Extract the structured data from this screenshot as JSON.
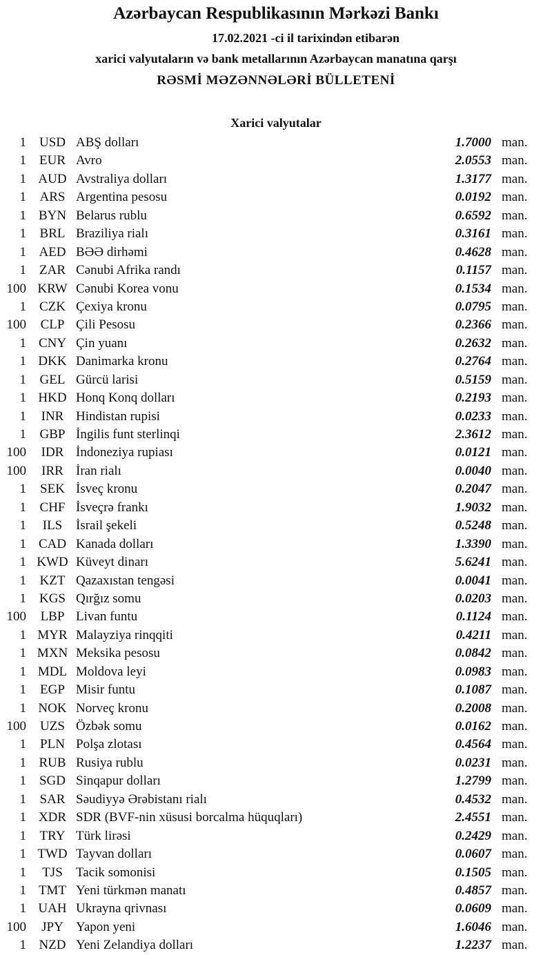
{
  "header": {
    "title": "Azərbaycan Respublikasının Mərkəzi Bankı",
    "date_line": "17.02.2021 -ci il tarixindən etibarən",
    "subtitle": "xarici valyutaların və bank metallarının Azərbaycan manatına qarşı",
    "bulletin": "RƏSMİ MƏZƏNNƏLƏRİ BÜLLETENİ"
  },
  "section_title": "Xarici valyutalar",
  "unit": "man.",
  "rates": [
    [
      "1",
      "USD",
      "ABŞ dolları",
      "1.7000"
    ],
    [
      "1",
      "EUR",
      "Avro",
      "2.0553"
    ],
    [
      "1",
      "AUD",
      "Avstraliya dolları",
      "1.3177"
    ],
    [
      "1",
      "ARS",
      "Argentina pesosu",
      "0.0192"
    ],
    [
      "1",
      "BYN",
      "Belarus rublu",
      "0.6592"
    ],
    [
      "1",
      "BRL",
      "Braziliya rialı",
      "0.3161"
    ],
    [
      "1",
      "AED",
      "BƏƏ dirhəmi",
      "0.4628"
    ],
    [
      "1",
      "ZAR",
      "Cənubi Afrika randı",
      "0.1157"
    ],
    [
      "100",
      "KRW",
      "Cənubi Korea vonu",
      "0.1534"
    ],
    [
      "1",
      "CZK",
      "Çexiya kronu",
      "0.0795"
    ],
    [
      "100",
      "CLP",
      "Çili Pesosu",
      "0.2366"
    ],
    [
      "1",
      "CNY",
      "Çin yuanı",
      "0.2632"
    ],
    [
      "1",
      "DKK",
      "Danimarka kronu",
      "0.2764"
    ],
    [
      "1",
      "GEL",
      "Gürcü larisi",
      "0.5159"
    ],
    [
      "1",
      "HKD",
      "Honq Konq dolları",
      "0.2193"
    ],
    [
      "1",
      "INR",
      "Hindistan rupisi",
      "0.0233"
    ],
    [
      "1",
      "GBP",
      "İngilis funt sterlinqi",
      "2.3612"
    ],
    [
      "100",
      "IDR",
      "İndoneziya rupiası",
      "0.0121"
    ],
    [
      "100",
      "IRR",
      "İran rialı",
      "0.0040"
    ],
    [
      "1",
      "SEK",
      "İsveç kronu",
      "0.2047"
    ],
    [
      "1",
      "CHF",
      "İsveçrə frankı",
      "1.9032"
    ],
    [
      "1",
      "ILS",
      "İsrail şekeli",
      "0.5248"
    ],
    [
      "1",
      "CAD",
      "Kanada dolları",
      "1.3390"
    ],
    [
      "1",
      "KWD",
      "Küveyt dinarı",
      "5.6241"
    ],
    [
      "1",
      "KZT",
      "Qazaxıstan tengəsi",
      "0.0041"
    ],
    [
      "1",
      "KGS",
      "Qırğız somu",
      "0.0203"
    ],
    [
      "100",
      "LBP",
      "Livan funtu",
      "0.1124"
    ],
    [
      "1",
      "MYR",
      "Malayziya rinqqiti",
      "0.4211"
    ],
    [
      "1",
      "MXN",
      "Meksika pesosu",
      "0.0842"
    ],
    [
      "1",
      "MDL",
      "Moldova leyi",
      "0.0983"
    ],
    [
      "1",
      "EGP",
      "Misir funtu",
      "0.1087"
    ],
    [
      "1",
      "NOK",
      "Norveç kronu",
      "0.2008"
    ],
    [
      "100",
      "UZS",
      "Özbək somu",
      "0.0162"
    ],
    [
      "1",
      "PLN",
      "Polşa zlotası",
      "0.4564"
    ],
    [
      "1",
      "RUB",
      "Rusiya rublu",
      "0.0231"
    ],
    [
      "1",
      "SGD",
      "Sinqapur dolları",
      "1.2799"
    ],
    [
      "1",
      "SAR",
      "Səudiyyə Ərəbistanı rialı",
      "0.4532"
    ],
    [
      "1",
      "XDR",
      "SDR (BVF-nin xüsusi borcalma hüquqları)",
      "2.4551"
    ],
    [
      "1",
      "TRY",
      "Türk lirəsi",
      "0.2429"
    ],
    [
      "1",
      "TWD",
      "Tayvan dolları",
      "0.0607"
    ],
    [
      "1",
      "TJS",
      "Tacik somonisi",
      "0.1505"
    ],
    [
      "1",
      "TMT",
      "Yeni türkmən manatı",
      "0.4857"
    ],
    [
      "1",
      "UAH",
      "Ukrayna qrivnası",
      "0.0609"
    ],
    [
      "100",
      "JPY",
      "Yapon yeni",
      "1.6046"
    ],
    [
      "1",
      "NZD",
      "Yeni Zelandiya dolları",
      "1.2237"
    ]
  ]
}
